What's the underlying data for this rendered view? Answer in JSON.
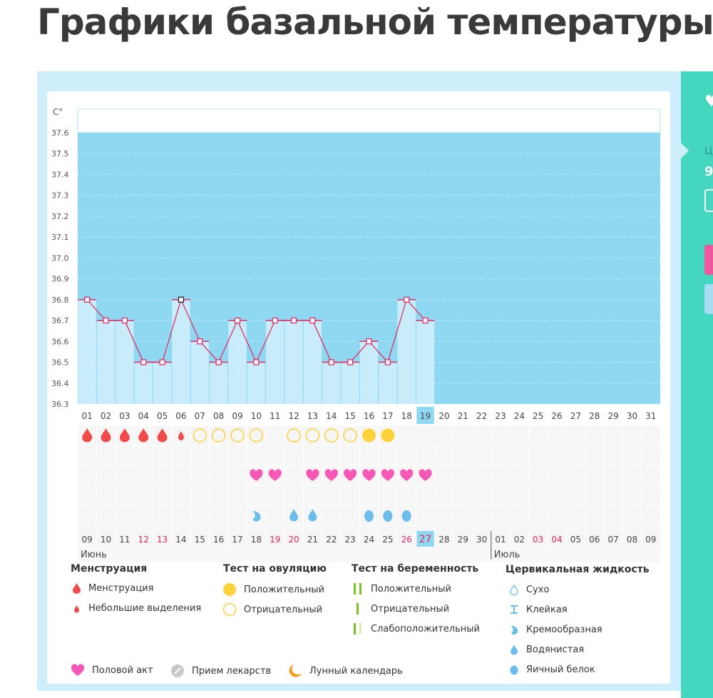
{
  "page_title": "Графики базальной температуры",
  "side_panel": {
    "label_partial": "Ц",
    "value_partial": "9"
  },
  "colors": {
    "plot_bg": "#8fd8f2",
    "bar": "#c8ecfa",
    "line": "#e0306a",
    "menstruation": "#f24a4a",
    "ovulation": "#fdd23a",
    "heart": "#f659b4",
    "cervical": "#6cbcec",
    "weekend": "#e8245c",
    "teal": "#45d6c0"
  },
  "chart_data": {
    "type": "line",
    "ylabel": "C°",
    "ylim": [
      36.3,
      37.6
    ],
    "yticks": [
      "37.6",
      "37.5",
      "37.4",
      "37.3",
      "37.2",
      "37.1",
      "37.0",
      "36.9",
      "36.8",
      "36.7",
      "36.6",
      "36.5",
      "36.4",
      "36.3"
    ],
    "cycle_days": [
      "01",
      "02",
      "03",
      "04",
      "05",
      "06",
      "07",
      "08",
      "09",
      "10",
      "11",
      "12",
      "13",
      "14",
      "15",
      "16",
      "17",
      "18",
      "19",
      "20",
      "21",
      "22",
      "23",
      "24",
      "25",
      "26",
      "27",
      "28",
      "29",
      "30",
      "31"
    ],
    "current_cycle_day": "19",
    "temperatures": [
      36.8,
      36.7,
      36.7,
      36.5,
      36.5,
      36.8,
      36.6,
      36.5,
      36.7,
      36.5,
      36.7,
      36.7,
      36.7,
      36.5,
      36.5,
      36.6,
      36.5,
      36.8,
      36.7
    ],
    "highlighted_point_day": "06",
    "dates": [
      "09",
      "10",
      "11",
      "12",
      "13",
      "14",
      "15",
      "16",
      "17",
      "18",
      "19",
      "20",
      "21",
      "22",
      "23",
      "24",
      "25",
      "26",
      "27",
      "28",
      "29",
      "30",
      "01",
      "02",
      "03",
      "04",
      "05",
      "06",
      "07",
      "08",
      "09"
    ],
    "weekend_dates_index": [
      3,
      4,
      10,
      11,
      17,
      18,
      24,
      25
    ],
    "today_index": 18,
    "months": [
      {
        "label": "Июнь",
        "start_index": 0
      },
      {
        "label": "Июль",
        "start_index": 22
      }
    ],
    "markers": {
      "cycle_row": [
        "menstruation",
        "menstruation",
        "menstruation",
        "menstruation",
        "menstruation",
        "spotting",
        "ovulation-negative",
        "ovulation-negative",
        "ovulation-negative",
        "ovulation-negative",
        "",
        "ovulation-negative",
        "ovulation-negative",
        "ovulation-negative",
        "ovulation-negative",
        "ovulation-positive",
        "ovulation-positive"
      ],
      "intercourse_days": [
        "10",
        "11",
        "13",
        "14",
        "15",
        "16",
        "17",
        "18",
        "19"
      ],
      "cervical": {
        "10": "creamy",
        "12": "watery",
        "13": "watery",
        "16": "egg-white",
        "17": "egg-white",
        "18": "egg-white"
      }
    }
  },
  "legend": {
    "menstruation": {
      "title": "Менструация",
      "items": [
        "Менструация",
        "Небольшие выделения"
      ]
    },
    "ovulation_test": {
      "title": "Тест на овуляцию",
      "items": [
        "Положительный",
        "Отрицательный"
      ]
    },
    "pregnancy_test": {
      "title": "Тест на беременность",
      "items": [
        "Положительный",
        "Отрицательный",
        "Слабоположительный"
      ]
    },
    "cervical_fluid": {
      "title": "Цервикальная жидкость",
      "items": [
        "Сухо",
        "Клейкая",
        "Кремообразная",
        "Водянистая",
        "Яичный белок"
      ]
    },
    "other": [
      "Половой акт",
      "Прием лекарств",
      "Лунный календарь"
    ]
  }
}
